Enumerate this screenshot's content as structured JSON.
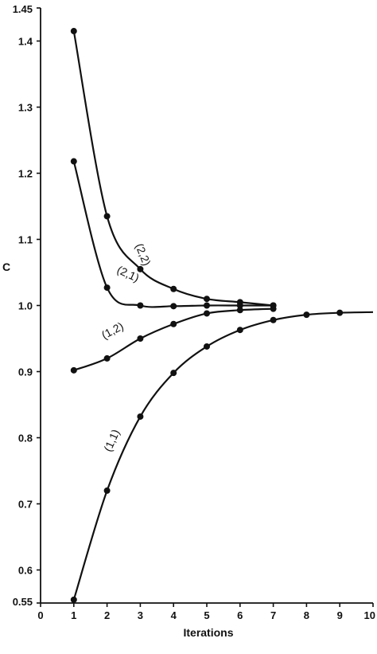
{
  "chart_data": {
    "type": "line",
    "xlabel": "Iterations",
    "ylabel": "C",
    "xlim": [
      0,
      10
    ],
    "ylim": [
      0.55,
      1.45
    ],
    "xticks": [
      "0",
      "1",
      "2",
      "3",
      "4",
      "5",
      "6",
      "7",
      "8",
      "9",
      "10"
    ],
    "yticks": [
      {
        "value": 0.55,
        "label": "0.55"
      },
      {
        "value": 0.6,
        "label": "0.6"
      },
      {
        "value": 0.7,
        "label": "0.7"
      },
      {
        "value": 0.8,
        "label": "0.8"
      },
      {
        "value": 0.9,
        "label": "0.9"
      },
      {
        "value": 1.0,
        "label": "1.0"
      },
      {
        "value": 1.1,
        "label": "1.1"
      },
      {
        "value": 1.2,
        "label": "1.2"
      },
      {
        "value": 1.3,
        "label": "1.3"
      },
      {
        "value": 1.4,
        "label": "1.4"
      },
      {
        "value": 1.45,
        "label": "1.45"
      }
    ],
    "grid": false,
    "series": [
      {
        "name": "(2,2)",
        "x": [
          1,
          2,
          3,
          4,
          5,
          6,
          7
        ],
        "y": [
          1.415,
          1.135,
          1.055,
          1.025,
          1.01,
          1.005,
          1.0
        ]
      },
      {
        "name": "(2,1)",
        "x": [
          1,
          2,
          3,
          4,
          5,
          6,
          7
        ],
        "y": [
          1.218,
          1.027,
          1.0,
          0.999,
          1.0,
          1.0,
          1.0
        ]
      },
      {
        "name": "(1,2)",
        "x": [
          1,
          2,
          3,
          4,
          5,
          6,
          7
        ],
        "y": [
          0.902,
          0.92,
          0.95,
          0.972,
          0.988,
          0.993,
          0.995
        ]
      },
      {
        "name": "(1,1)",
        "x": [
          1,
          2,
          3,
          4,
          5,
          6,
          7,
          8,
          9
        ],
        "y": [
          0.555,
          0.72,
          0.832,
          0.898,
          0.938,
          0.963,
          0.978,
          0.986,
          0.989
        ],
        "extend_to_x": 10,
        "extend_y": 0.99
      }
    ]
  }
}
